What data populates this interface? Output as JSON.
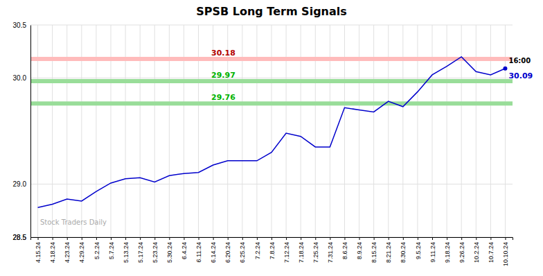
{
  "chart_data": {
    "type": "line",
    "title": "SPSB Long Term Signals",
    "categories": [
      "4.15.24",
      "4.18.24",
      "4.23.24",
      "4.29.24",
      "5.2.24",
      "5.7.24",
      "5.13.24",
      "5.17.24",
      "5.23.24",
      "5.30.24",
      "6.4.24",
      "6.11.24",
      "6.14.24",
      "6.20.24",
      "6.25.24",
      "7.2.24",
      "7.8.24",
      "7.12.24",
      "7.18.24",
      "7.25.24",
      "7.31.24",
      "8.6.24",
      "8.9.24",
      "8.15.24",
      "8.21.24",
      "8.30.24",
      "9.5.24",
      "9.11.24",
      "9.18.24",
      "9.26.24",
      "10.2.24",
      "10.7.24",
      "10.10.24"
    ],
    "values": [
      28.78,
      28.81,
      28.86,
      28.84,
      28.93,
      29.01,
      29.05,
      29.06,
      29.02,
      29.08,
      29.1,
      29.11,
      29.18,
      29.22,
      29.22,
      29.22,
      29.3,
      29.48,
      29.45,
      29.35,
      29.35,
      29.72,
      29.7,
      29.68,
      29.78,
      29.73,
      29.87,
      30.03,
      30.11,
      30.2,
      30.06,
      30.03,
      30.09
    ],
    "color": "#0000cc",
    "ylim": [
      28.5,
      30.5
    ],
    "yticks": [
      28.5,
      {
        "value": 29.0,
        "label": "29.0"
      },
      28.5,
      {
        "value": 30.0,
        "label": "30.0"
      },
      30.5
    ],
    "grid": true,
    "reference_lines": [
      {
        "value": 30.18,
        "label": "30.18",
        "color": "#ffbbbb"
      },
      {
        "value": 29.97,
        "label": "29.97",
        "color": "#99dd99"
      },
      {
        "value": 29.76,
        "label": "29.76",
        "color": "#99dd99"
      }
    ],
    "annotations": [
      {
        "text": "16:00",
        "position": "end"
      },
      {
        "text": "30.09",
        "position": "end"
      },
      {
        "text": "Stock Traders Daily",
        "position": "bottom-left"
      }
    ]
  }
}
